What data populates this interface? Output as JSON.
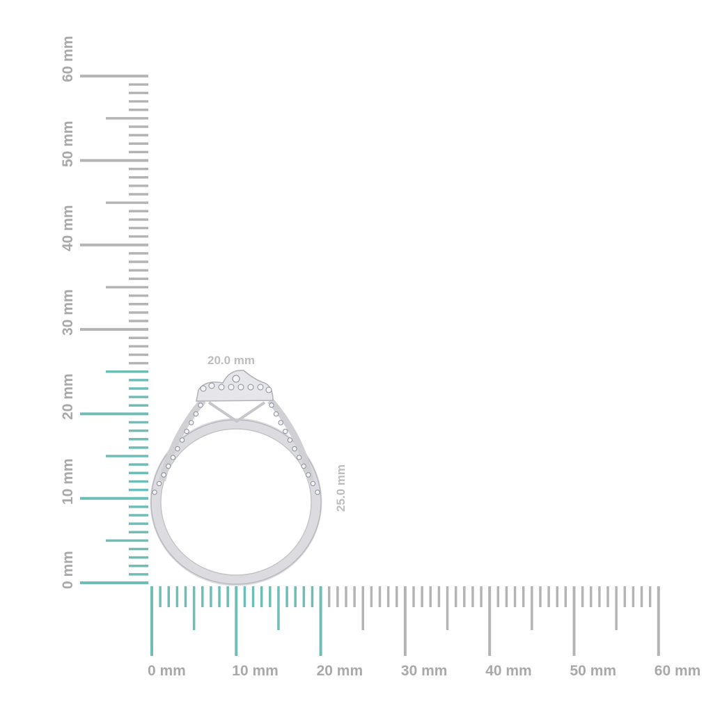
{
  "colors": {
    "highlight": "#6fbdb7",
    "ruler": "#b4b4b4",
    "label": "#a9a9a9",
    "metal": "#d8d8dc"
  },
  "rulers": {
    "vertical": {
      "labels": [
        "0 mm",
        "10 mm",
        "20 mm",
        "30 mm",
        "40 mm",
        "50 mm",
        "60 mm"
      ],
      "max_mm": 60,
      "highlight_mm": 25
    },
    "horizontal": {
      "labels": [
        "0 mm",
        "10 mm",
        "20 mm",
        "30 mm",
        "40 mm",
        "50 mm",
        "60 mm"
      ],
      "max_mm": 60,
      "highlight_mm": 20
    }
  },
  "dimensions": {
    "width": "20.0 mm",
    "height": "25.0 mm"
  },
  "product": {
    "icon": "halo-diamond-ring"
  }
}
